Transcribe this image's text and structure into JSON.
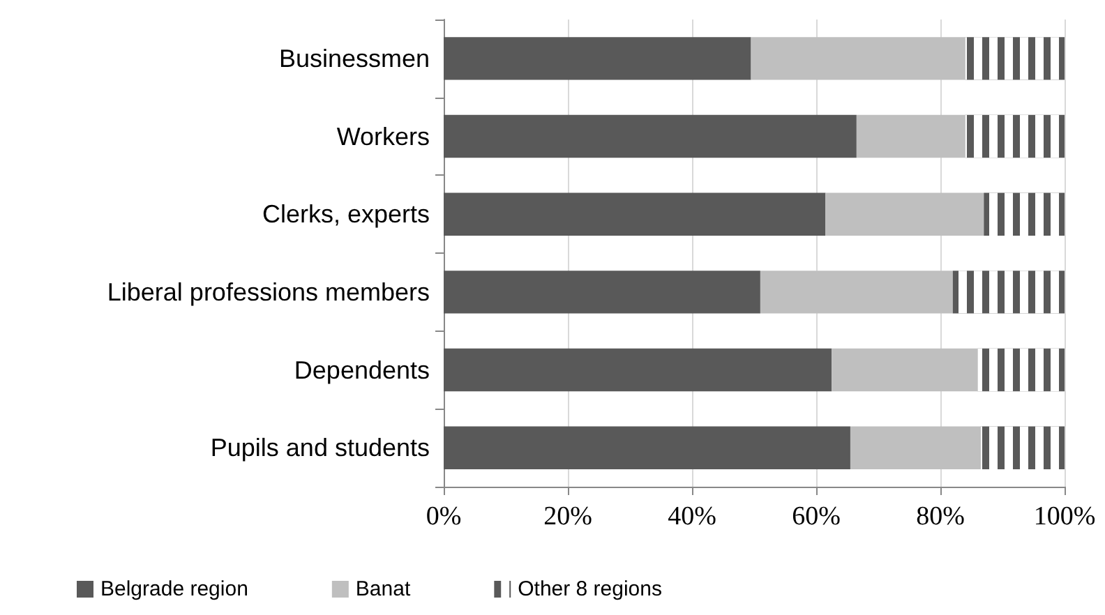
{
  "chart_data": {
    "type": "bar",
    "orientation": "horizontal",
    "stacked": true,
    "categories": [
      "Businessmen",
      "Workers",
      "Clerks, experts",
      "Liberal professions members",
      "Dependents",
      "Pupils and students"
    ],
    "series": [
      {
        "name": "Belgrade region",
        "color": "#595959",
        "values": [
          49.5,
          66.5,
          61.5,
          51,
          62.5,
          65.5
        ]
      },
      {
        "name": "Banat",
        "color": "#bfbfbf",
        "values": [
          34.5,
          17.5,
          25.5,
          31,
          23.5,
          21
        ]
      },
      {
        "name": "Other 8 regions",
        "color": "#595959",
        "values": [
          16,
          16,
          13,
          18,
          14,
          13.5
        ]
      }
    ],
    "xlim": [
      0,
      100
    ],
    "xticks": [
      {
        "value": 0,
        "label": "0%"
      },
      {
        "value": 20,
        "label": "20%"
      },
      {
        "value": 40,
        "label": "40%"
      },
      {
        "value": 60,
        "label": "60%"
      },
      {
        "value": 80,
        "label": "80%"
      },
      {
        "value": 100,
        "label": "100%"
      }
    ],
    "grid": "x",
    "legend": "bottom left"
  }
}
